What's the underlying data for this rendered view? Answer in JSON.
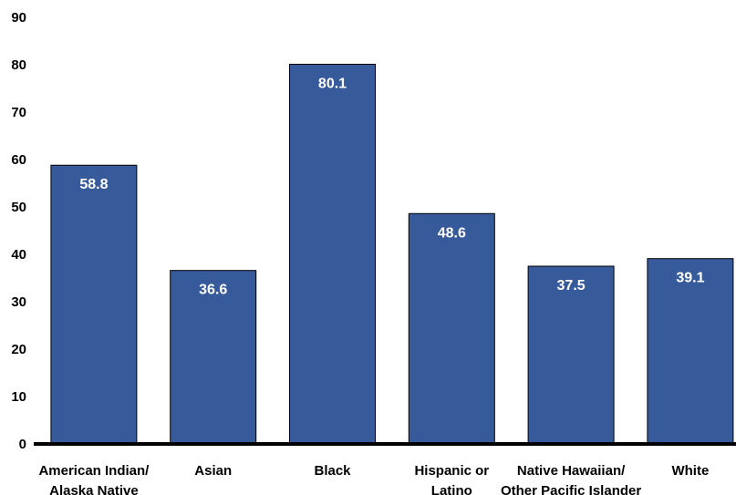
{
  "chart_data": {
    "type": "bar",
    "categories": [
      [
        "American Indian/",
        "Alaska Native"
      ],
      [
        "Asian"
      ],
      [
        "Black"
      ],
      [
        "Hispanic or",
        "Latino"
      ],
      [
        "Native Hawaiian/",
        "Other Pacific Islander"
      ],
      [
        "White"
      ]
    ],
    "values": [
      58.8,
      36.6,
      80.1,
      48.6,
      37.5,
      39.1
    ],
    "value_labels": [
      "58.8",
      "36.6",
      "80.1",
      "48.6",
      "37.5",
      "39.1"
    ],
    "yticks": [
      "0",
      "10",
      "20",
      "30",
      "40",
      "50",
      "60",
      "70",
      "80",
      "90"
    ],
    "ylim": [
      0,
      90
    ],
    "title": "",
    "xlabel": "",
    "ylabel": "",
    "grid": false,
    "legend": "none",
    "bar_color": "#375a9b",
    "axis_color": "#000000"
  }
}
